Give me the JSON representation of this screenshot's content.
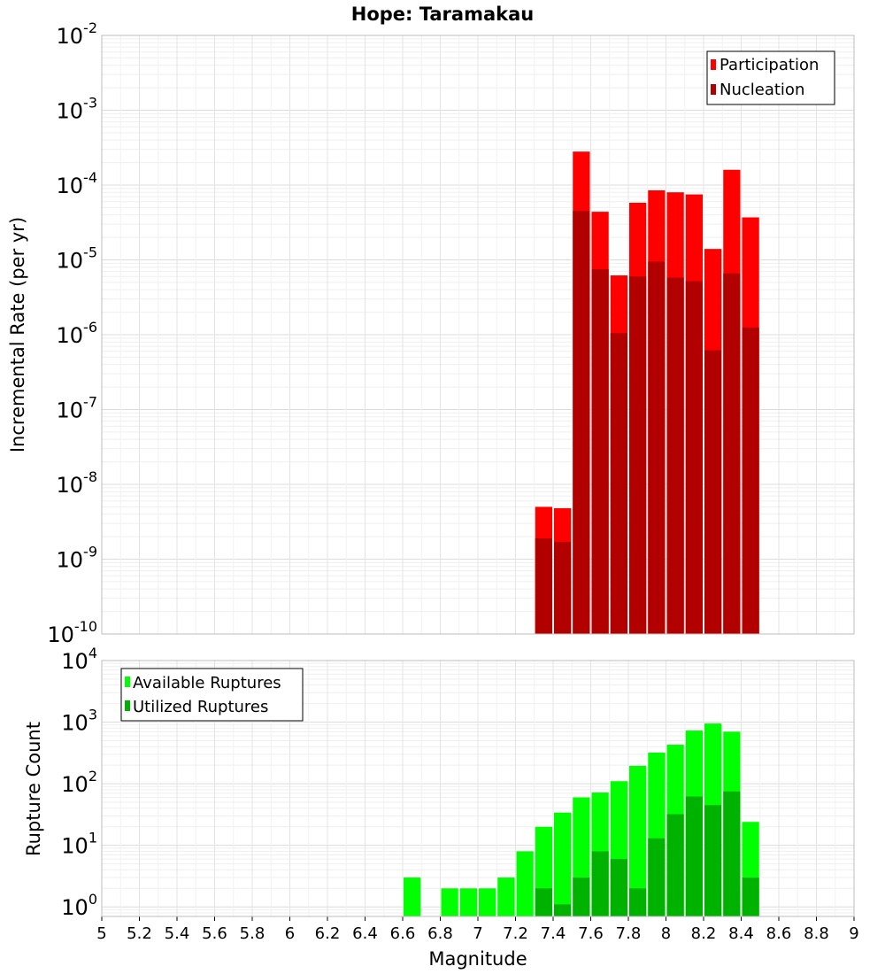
{
  "chart_data": [
    {
      "type": "bar",
      "title": "Hope: Taramakau",
      "xlabel": "",
      "ylabel": "Incremental Rate (per yr)",
      "xlim": [
        5,
        9
      ],
      "ylim": [
        1e-10,
        0.01
      ],
      "y_scale": "log",
      "grid": true,
      "legend_position": "top-right",
      "bin_width": 0.1,
      "y_tick_exponents": [
        -10,
        -9,
        -8,
        -7,
        -6,
        -5,
        -4,
        -3,
        -2
      ],
      "x": [
        7.35,
        7.45,
        7.55,
        7.65,
        7.75,
        7.85,
        7.95,
        8.05,
        8.15,
        8.25,
        8.35,
        8.45
      ],
      "series": [
        {
          "name": "Participation",
          "color": "#ff0000",
          "values": [
            5e-09,
            4.8e-09,
            0.00028,
            4.4e-05,
            6.2e-06,
            5.8e-05,
            8.5e-05,
            8e-05,
            7.5e-05,
            1.4e-05,
            0.00016,
            3.7e-05
          ]
        },
        {
          "name": "Nucleation",
          "color": "#b20000",
          "values": [
            1.9e-09,
            1.7e-09,
            4.5e-05,
            7.5e-06,
            1.05e-06,
            6e-06,
            9.5e-06,
            5.8e-06,
            5.2e-06,
            6.2e-07,
            6.6e-06,
            1.25e-06
          ]
        }
      ]
    },
    {
      "type": "bar",
      "title": "",
      "xlabel": "Magnitude",
      "ylabel": "Rupture Count",
      "xlim": [
        5,
        9
      ],
      "ylim": [
        0.7,
        10000
      ],
      "y_scale": "log",
      "grid": true,
      "legend_position": "top-left",
      "bin_width": 0.1,
      "y_tick_exponents": [
        0,
        1,
        2,
        3,
        4
      ],
      "x_ticks": [
        "5",
        "5.2",
        "5.4",
        "5.6",
        "5.8",
        "6",
        "6.2",
        "6.4",
        "6.6",
        "6.8",
        "7",
        "7.2",
        "7.4",
        "7.6",
        "7.8",
        "8",
        "8.2",
        "8.4",
        "8.6",
        "8.8",
        "9"
      ],
      "x": [
        6.65,
        6.85,
        6.95,
        7.05,
        7.15,
        7.25,
        7.35,
        7.45,
        7.55,
        7.65,
        7.75,
        7.85,
        7.95,
        8.05,
        8.15,
        8.25,
        8.35,
        8.45
      ],
      "series": [
        {
          "name": "Available Ruptures",
          "color": "#00ff00",
          "values": [
            3,
            2,
            2,
            2,
            3,
            8,
            20,
            34,
            60,
            72,
            110,
            195,
            320,
            430,
            730,
            950,
            700,
            24
          ]
        },
        {
          "name": "Utilized Ruptures",
          "color": "#00b200",
          "values": [
            0,
            0,
            0,
            0,
            0,
            0,
            2,
            1.1,
            3,
            8,
            6,
            2,
            13,
            32,
            62,
            45,
            75,
            3
          ]
        }
      ]
    }
  ]
}
